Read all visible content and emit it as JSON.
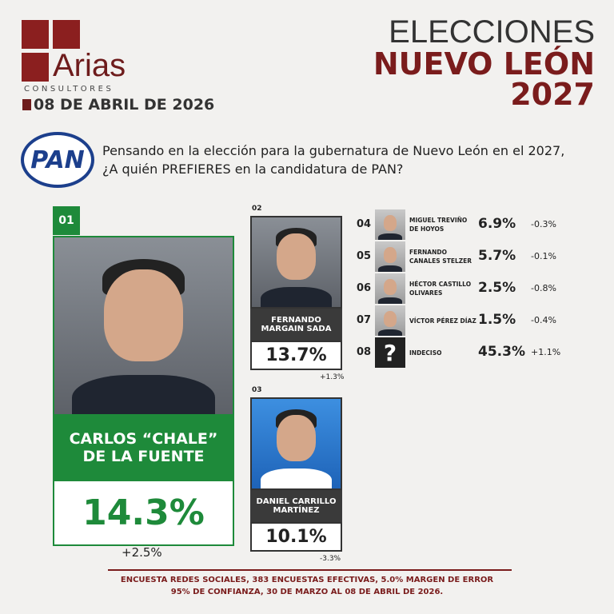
{
  "brand": {
    "name": "Arias",
    "subtitle": "CONSULTORES",
    "date": "08 DE ABRIL DE 2026"
  },
  "header": {
    "line1": "ELECCIONES",
    "line2": "NUEVO LEÓN",
    "line3": "2027"
  },
  "party": "PAN",
  "question": "Pensando en la elección para la gubernatura de Nuevo León en el 2027,  ¿A quién PREFIERES en la candidatura de PAN?",
  "candidates": [
    {
      "rank": "01",
      "name": "CARLOS “CHALE” DE LA FUENTE",
      "pct": "14.3%",
      "change": "+2.5%"
    },
    {
      "rank": "02",
      "name": "FERNANDO MARGAIN SADA",
      "pct": "13.7%",
      "change": "+1.3%"
    },
    {
      "rank": "03",
      "name": "DANIEL CARRILLO MARTÍNEZ",
      "pct": "10.1%",
      "change": "-3.3%"
    },
    {
      "rank": "04",
      "name": "MIGUEL TREVIÑO DE HOYOS",
      "pct": "6.9%",
      "change": "-0.3%"
    },
    {
      "rank": "05",
      "name": "FERNANDO CANALES STELZER",
      "pct": "5.7%",
      "change": "-0.1%"
    },
    {
      "rank": "06",
      "name": "HÉCTOR CASTILLO OLIVARES",
      "pct": "2.5%",
      "change": "-0.8%"
    },
    {
      "rank": "07",
      "name": "VÍCTOR PÉREZ DÍAZ",
      "pct": "1.5%",
      "change": "-0.4%"
    },
    {
      "rank": "08",
      "name": "INDECISO",
      "pct": "45.3%",
      "change": "+1.1%",
      "icon": "?"
    }
  ],
  "footer": {
    "line1": "ENCUESTA REDES SOCIALES, 383 ENCUESTAS EFECTIVAS, 5.0%  MARGEN DE ERROR",
    "line2": "95% DE CONFIANZA, 30 DE MARZO AL 08 DE ABRIL DE 2026."
  }
}
